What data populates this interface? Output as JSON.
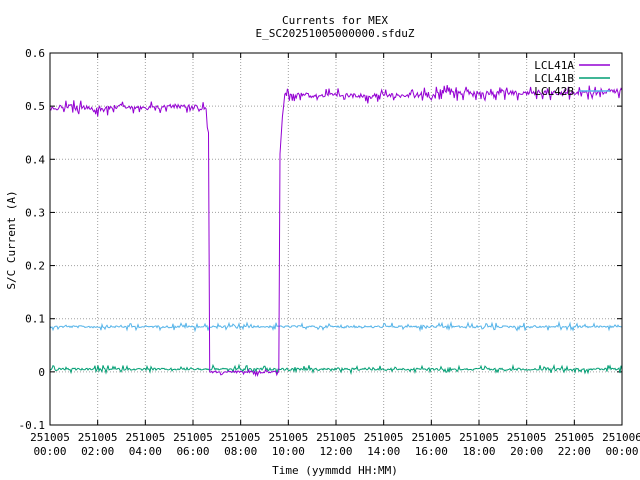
{
  "chart_data": {
    "type": "line",
    "title": "Currents for MEX",
    "subtitle": "E_SC20251005000000.sfduZ",
    "xlabel": "Time (yymmdd HH:MM)",
    "ylabel": "S/C Current (A)",
    "xlim": [
      0,
      24
    ],
    "ylim": [
      -0.1,
      0.6
    ],
    "grid": true,
    "legend_position": "top-right",
    "x_ticks": [
      {
        "x": 0,
        "date": "251005",
        "time": "00:00"
      },
      {
        "x": 2,
        "date": "251005",
        "time": "02:00"
      },
      {
        "x": 4,
        "date": "251005",
        "time": "04:00"
      },
      {
        "x": 6,
        "date": "251005",
        "time": "06:00"
      },
      {
        "x": 8,
        "date": "251005",
        "time": "08:00"
      },
      {
        "x": 10,
        "date": "251005",
        "time": "10:00"
      },
      {
        "x": 12,
        "date": "251005",
        "time": "12:00"
      },
      {
        "x": 14,
        "date": "251005",
        "time": "14:00"
      },
      {
        "x": 16,
        "date": "251005",
        "time": "16:00"
      },
      {
        "x": 18,
        "date": "251005",
        "time": "18:00"
      },
      {
        "x": 20,
        "date": "251005",
        "time": "20:00"
      },
      {
        "x": 22,
        "date": "251005",
        "time": "22:00"
      },
      {
        "x": 24,
        "date": "251006",
        "time": "00:00"
      }
    ],
    "y_ticks": [
      "-0.1",
      "0",
      "0.1",
      "0.2",
      "0.3",
      "0.4",
      "0.5",
      "0.6"
    ],
    "series": [
      {
        "name": "LCL41A",
        "color": "#9400d3",
        "points": [
          [
            0,
            0.495
          ],
          [
            1,
            0.5
          ],
          [
            2,
            0.495
          ],
          [
            3,
            0.5
          ],
          [
            4,
            0.495
          ],
          [
            5,
            0.5
          ],
          [
            6,
            0.5
          ],
          [
            6.55,
            0.495
          ],
          [
            6.6,
            0.46
          ],
          [
            6.65,
            0.45
          ],
          [
            6.7,
            0.0
          ],
          [
            7,
            0.0
          ],
          [
            8,
            0.0
          ],
          [
            9,
            0.0
          ],
          [
            9.6,
            0.0
          ],
          [
            9.65,
            0.41
          ],
          [
            9.75,
            0.48
          ],
          [
            9.85,
            0.52
          ],
          [
            10,
            0.525
          ],
          [
            11,
            0.52
          ],
          [
            12,
            0.52
          ],
          [
            13,
            0.52
          ],
          [
            14,
            0.52
          ],
          [
            15,
            0.52
          ],
          [
            16,
            0.525
          ],
          [
            17,
            0.525
          ],
          [
            18,
            0.525
          ],
          [
            19,
            0.525
          ],
          [
            20,
            0.525
          ],
          [
            21,
            0.525
          ],
          [
            22,
            0.525
          ],
          [
            23,
            0.525
          ],
          [
            24,
            0.53
          ]
        ]
      },
      {
        "name": "LCL41B",
        "color": "#009e73",
        "points": [
          [
            0,
            0.005
          ],
          [
            24,
            0.005
          ]
        ]
      },
      {
        "name": "LCL42B",
        "color": "#56b4e9",
        "points": [
          [
            0,
            0.085
          ],
          [
            24,
            0.085
          ]
        ]
      }
    ]
  }
}
